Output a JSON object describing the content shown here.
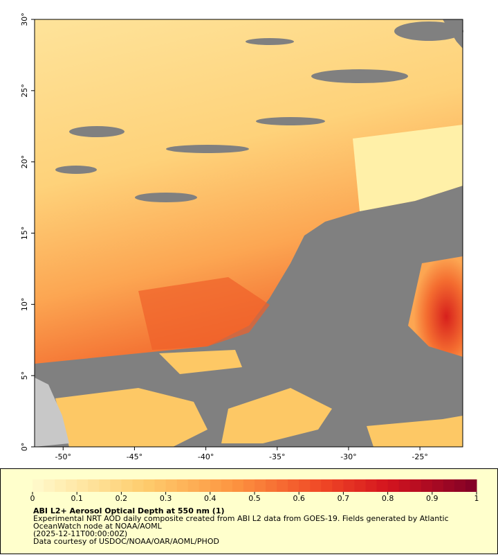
{
  "map": {
    "lonlim": [
      -52,
      -22
    ],
    "latlim": [
      0,
      30
    ],
    "lon_ticks": [
      {
        "value": -50,
        "label": "-50°"
      },
      {
        "value": -45,
        "label": "-45°"
      },
      {
        "value": -40,
        "label": "-40°"
      },
      {
        "value": -35,
        "label": "-35°"
      },
      {
        "value": -30,
        "label": "-30°"
      },
      {
        "value": -25,
        "label": "-25°"
      }
    ],
    "lat_ticks": [
      {
        "value": 0,
        "label": "0°"
      },
      {
        "value": 5,
        "label": "5°"
      },
      {
        "value": 10,
        "label": "10°"
      },
      {
        "value": 15,
        "label": "15°"
      },
      {
        "value": 20,
        "label": "20°"
      },
      {
        "value": 25,
        "label": "25°"
      },
      {
        "value": 30,
        "label": "30°"
      }
    ]
  },
  "legend": {
    "colorbar": {
      "lim": [
        0,
        1
      ],
      "ticks": [
        0,
        0.1,
        0.2,
        0.3,
        0.4,
        0.5,
        0.6,
        0.7,
        0.8,
        0.9,
        1
      ]
    },
    "title": "ABI L2+ Aerosol Optical Depth at 550 nm (1)",
    "lines": [
      "Experimental NRT AOD daily composite created from ABI L2 data from GOES-19. Fields generated by Atlantic",
      "OceanWatch node at NOAA/AOML",
      "(2025-12-11T00:00:00Z)",
      "Data courtesy of USDOC/NOAA/OAR/AOML/PHOD"
    ]
  }
}
